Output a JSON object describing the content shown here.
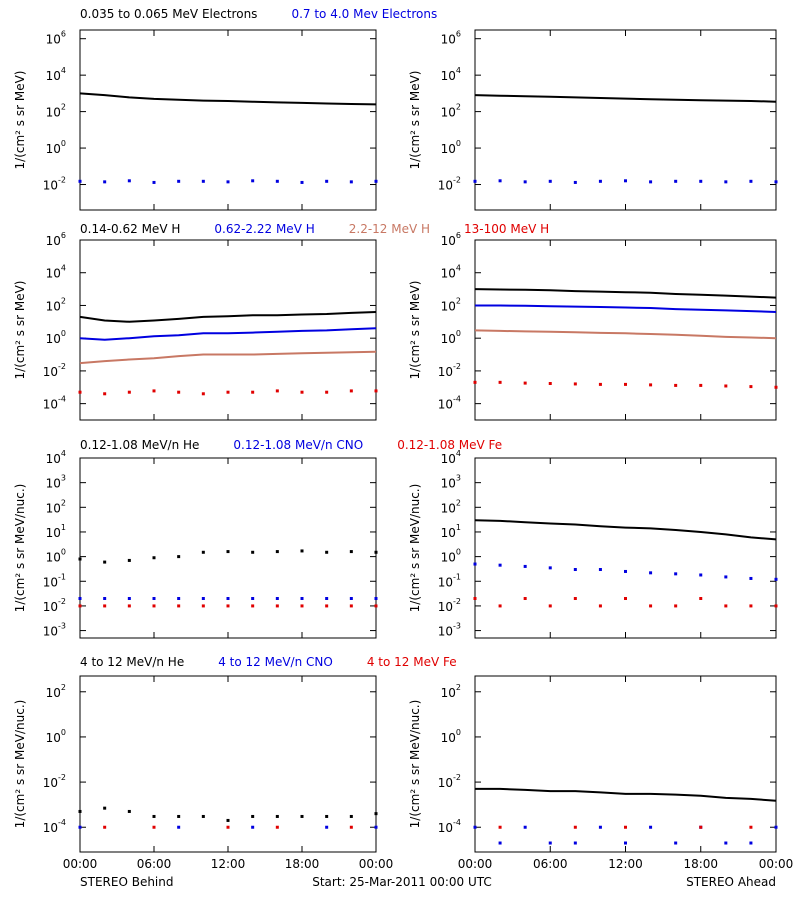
{
  "chart_data": [
    {
      "type": "line",
      "ylabel": "1/(cm² s sr MeV)",
      "ylim": [
        0.0004,
        3000000
      ],
      "log_y": true,
      "yticks": [
        {
          "value": 0.01,
          "label": "10",
          "sup": "-2"
        },
        {
          "value": 1,
          "label": "10",
          "sup": "0"
        },
        {
          "value": 100,
          "label": "10",
          "sup": "2"
        },
        {
          "value": 10000,
          "label": "10",
          "sup": "4"
        },
        {
          "value": 1000000,
          "label": "10",
          "sup": "6"
        }
      ],
      "xlim": [
        0,
        24
      ],
      "xticks": [
        0,
        6,
        12,
        18,
        24
      ],
      "x": [
        0,
        2,
        4,
        6,
        8,
        10,
        12,
        14,
        16,
        18,
        20,
        22,
        24
      ],
      "series": [
        {
          "name": "0.035 to 0.065 MeV Electrons",
          "color": "#000000",
          "style": "line",
          "values": [
            1000,
            800,
            600,
            500,
            450,
            400,
            380,
            350,
            320,
            300,
            280,
            260,
            250
          ]
        },
        {
          "name": "0.7 to 4.0 Mev Electrons",
          "color": "#0000e0",
          "style": "dots",
          "values": [
            0.015,
            0.014,
            0.016,
            0.013,
            0.015,
            0.015,
            0.014,
            0.016,
            0.015,
            0.013,
            0.015,
            0.014,
            0.015
          ]
        }
      ]
    },
    {
      "type": "line",
      "ylabel": "1/(cm² s sr MeV)",
      "ylim": [
        0.0004,
        3000000
      ],
      "log_y": true,
      "yticks": [
        {
          "value": 0.01,
          "label": "10",
          "sup": "-2"
        },
        {
          "value": 1,
          "label": "10",
          "sup": "0"
        },
        {
          "value": 100,
          "label": "10",
          "sup": "2"
        },
        {
          "value": 10000,
          "label": "10",
          "sup": "4"
        },
        {
          "value": 1000000,
          "label": "10",
          "sup": "6"
        }
      ],
      "xlim": [
        0,
        24
      ],
      "xticks": [
        0,
        6,
        12,
        18,
        24
      ],
      "x": [
        0,
        2,
        4,
        6,
        8,
        10,
        12,
        14,
        16,
        18,
        20,
        22,
        24
      ],
      "series": [
        {
          "color": "#000000",
          "style": "line",
          "values": [
            800,
            750,
            700,
            650,
            600,
            560,
            520,
            480,
            450,
            420,
            400,
            380,
            350
          ]
        },
        {
          "color": "#0000e0",
          "style": "dots",
          "values": [
            0.015,
            0.016,
            0.014,
            0.015,
            0.013,
            0.015,
            0.016,
            0.014,
            0.015,
            0.015,
            0.014,
            0.015,
            0.014
          ]
        }
      ]
    },
    {
      "type": "line",
      "ylabel": "1/(cm² s sr MeV)",
      "ylim": [
        1e-05,
        1000000
      ],
      "log_y": true,
      "yticks": [
        {
          "value": 0.0001,
          "label": "10",
          "sup": "-4"
        },
        {
          "value": 0.01,
          "label": "10",
          "sup": "-2"
        },
        {
          "value": 1,
          "label": "10",
          "sup": "0"
        },
        {
          "value": 100,
          "label": "10",
          "sup": "2"
        },
        {
          "value": 10000,
          "label": "10",
          "sup": "4"
        },
        {
          "value": 1000000,
          "label": "10",
          "sup": "6"
        }
      ],
      "xlim": [
        0,
        24
      ],
      "xticks": [
        0,
        6,
        12,
        18,
        24
      ],
      "x": [
        0,
        2,
        4,
        6,
        8,
        10,
        12,
        14,
        16,
        18,
        20,
        22,
        24
      ],
      "series": [
        {
          "name": "0.14-0.62 MeV H",
          "color": "#000000",
          "style": "line",
          "values": [
            20,
            12,
            10,
            12,
            15,
            20,
            22,
            25,
            25,
            28,
            30,
            35,
            40
          ]
        },
        {
          "name": "0.62-2.22 MeV H",
          "color": "#0000e0",
          "style": "line",
          "values": [
            1,
            0.8,
            1,
            1.3,
            1.5,
            2,
            2,
            2.2,
            2.5,
            2.8,
            3,
            3.5,
            4
          ]
        },
        {
          "name": "2.2-12 MeV H",
          "color": "#c87864",
          "style": "line",
          "values": [
            0.03,
            0.04,
            0.05,
            0.06,
            0.08,
            0.1,
            0.1,
            0.1,
            0.11,
            0.12,
            0.13,
            0.14,
            0.15
          ]
        },
        {
          "name": "13-100 MeV H",
          "color": "#e00000",
          "style": "dots",
          "values": [
            0.0005,
            0.0004,
            0.0005,
            0.0006,
            0.0005,
            0.0004,
            0.0005,
            0.0005,
            0.0006,
            0.0005,
            0.0005,
            0.0006,
            0.0006
          ]
        }
      ]
    },
    {
      "type": "line",
      "ylabel": "1/(cm² s sr MeV)",
      "ylim": [
        1e-05,
        1000000
      ],
      "log_y": true,
      "yticks": [
        {
          "value": 0.0001,
          "label": "10",
          "sup": "-4"
        },
        {
          "value": 0.01,
          "label": "10",
          "sup": "-2"
        },
        {
          "value": 1,
          "label": "10",
          "sup": "0"
        },
        {
          "value": 100,
          "label": "10",
          "sup": "2"
        },
        {
          "value": 10000,
          "label": "10",
          "sup": "4"
        },
        {
          "value": 1000000,
          "label": "10",
          "sup": "6"
        }
      ],
      "xlim": [
        0,
        24
      ],
      "xticks": [
        0,
        6,
        12,
        18,
        24
      ],
      "x": [
        0,
        2,
        4,
        6,
        8,
        10,
        12,
        14,
        16,
        18,
        20,
        22,
        24
      ],
      "series": [
        {
          "color": "#000000",
          "style": "line",
          "values": [
            1000,
            950,
            900,
            850,
            750,
            700,
            650,
            600,
            500,
            450,
            400,
            350,
            300
          ]
        },
        {
          "color": "#0000e0",
          "style": "line",
          "values": [
            100,
            100,
            95,
            90,
            85,
            80,
            75,
            70,
            60,
            55,
            50,
            45,
            40
          ]
        },
        {
          "color": "#c87864",
          "style": "line",
          "values": [
            3,
            2.8,
            2.6,
            2.5,
            2.3,
            2.1,
            2,
            1.8,
            1.6,
            1.4,
            1.2,
            1.1,
            1
          ]
        },
        {
          "color": "#e00000",
          "style": "dots",
          "values": [
            0.002,
            0.002,
            0.0018,
            0.0017,
            0.0016,
            0.0015,
            0.0015,
            0.0014,
            0.0013,
            0.0013,
            0.0012,
            0.0011,
            0.001
          ]
        }
      ]
    },
    {
      "type": "line",
      "ylabel": "1/(cm² s sr MeV/nuc.)",
      "ylim": [
        0.0005,
        10000
      ],
      "log_y": true,
      "yticks": [
        {
          "value": 0.001,
          "label": "10",
          "sup": "-3"
        },
        {
          "value": 0.01,
          "label": "10",
          "sup": "-2"
        },
        {
          "value": 0.1,
          "label": "10",
          "sup": "-1"
        },
        {
          "value": 1,
          "label": "10",
          "sup": "0"
        },
        {
          "value": 10,
          "label": "10",
          "sup": "1"
        },
        {
          "value": 100,
          "label": "10",
          "sup": "2"
        },
        {
          "value": 1000,
          "label": "10",
          "sup": "3"
        },
        {
          "value": 10000,
          "label": "10",
          "sup": "4"
        }
      ],
      "xlim": [
        0,
        24
      ],
      "xticks": [
        0,
        6,
        12,
        18,
        24
      ],
      "x": [
        0,
        2,
        4,
        6,
        8,
        10,
        12,
        14,
        16,
        18,
        20,
        22,
        24
      ],
      "series": [
        {
          "name": "0.12-1.08 MeV/n He",
          "color": "#000000",
          "style": "dots",
          "values": [
            0.8,
            0.6,
            0.7,
            0.9,
            1,
            1.5,
            1.6,
            1.5,
            1.6,
            1.7,
            1.5,
            1.6,
            1.5
          ]
        },
        {
          "name": "0.12-1.08 MeV/n CNO",
          "color": "#0000e0",
          "style": "dots",
          "values": [
            0.02,
            0.02,
            0.02,
            0.02,
            0.02,
            0.02,
            0.02,
            0.02,
            0.02,
            0.02,
            0.02,
            0.02,
            0.02
          ]
        },
        {
          "name": "0.12-1.08 MeV Fe",
          "color": "#e00000",
          "style": "dots",
          "values": [
            0.01,
            0.01,
            0.01,
            0.01,
            0.01,
            0.01,
            0.01,
            0.01,
            0.01,
            0.01,
            0.01,
            0.01,
            0.01
          ]
        }
      ]
    },
    {
      "type": "line",
      "ylabel": "1/(cm² s sr MeV/nuc.)",
      "ylim": [
        0.0005,
        10000
      ],
      "log_y": true,
      "yticks": [
        {
          "value": 0.001,
          "label": "10",
          "sup": "-3"
        },
        {
          "value": 0.01,
          "label": "10",
          "sup": "-2"
        },
        {
          "value": 0.1,
          "label": "10",
          "sup": "-1"
        },
        {
          "value": 1,
          "label": "10",
          "sup": "0"
        },
        {
          "value": 10,
          "label": "10",
          "sup": "1"
        },
        {
          "value": 100,
          "label": "10",
          "sup": "2"
        },
        {
          "value": 1000,
          "label": "10",
          "sup": "3"
        },
        {
          "value": 10000,
          "label": "10",
          "sup": "4"
        }
      ],
      "xlim": [
        0,
        24
      ],
      "xticks": [
        0,
        6,
        12,
        18,
        24
      ],
      "x": [
        0,
        2,
        4,
        6,
        8,
        10,
        12,
        14,
        16,
        18,
        20,
        22,
        24
      ],
      "series": [
        {
          "color": "#000000",
          "style": "line",
          "values": [
            30,
            28,
            25,
            22,
            20,
            17,
            15,
            14,
            12,
            10,
            8,
            6,
            5
          ]
        },
        {
          "color": "#0000e0",
          "style": "dots",
          "values": [
            0.5,
            0.45,
            0.4,
            0.35,
            0.3,
            0.3,
            0.25,
            0.22,
            0.2,
            0.18,
            0.15,
            0.13,
            0.12
          ]
        },
        {
          "color": "#e00000",
          "style": "dots",
          "values": [
            0.02,
            0.01,
            0.02,
            0.01,
            0.02,
            0.01,
            0.02,
            0.01,
            0.01,
            0.02,
            0.01,
            0.01,
            0.01
          ]
        }
      ]
    },
    {
      "type": "line",
      "ylabel": "1/(cm² s sr MeV/nuc.)",
      "ylim": [
        8e-06,
        500
      ],
      "log_y": true,
      "yticks": [
        {
          "value": 0.0001,
          "label": "10",
          "sup": "-4"
        },
        {
          "value": 0.01,
          "label": "10",
          "sup": "-2"
        },
        {
          "value": 1,
          "label": "10",
          "sup": "0"
        },
        {
          "value": 100,
          "label": "10",
          "sup": "2"
        }
      ],
      "xlim": [
        0,
        24
      ],
      "xticks": [
        {
          "value": 0,
          "label": "00:00"
        },
        {
          "value": 6,
          "label": "06:00"
        },
        {
          "value": 12,
          "label": "12:00"
        },
        {
          "value": 18,
          "label": "18:00"
        },
        {
          "value": 24,
          "label": "00:00"
        }
      ],
      "x": [
        0,
        2,
        4,
        6,
        8,
        10,
        12,
        14,
        16,
        18,
        20,
        22,
        24
      ],
      "series": [
        {
          "name": "4 to 12 MeV/n He",
          "color": "#000000",
          "style": "dots",
          "values": [
            0.0005,
            0.0007,
            0.0005,
            0.0003,
            0.0003,
            0.0003,
            0.0002,
            0.0003,
            0.0003,
            0.0003,
            0.0003,
            0.0003,
            0.0004
          ]
        },
        {
          "name": "4 to 12 MeV/n CNO",
          "color": "#0000e0",
          "style": "dots",
          "values": [
            0.0001,
            null,
            null,
            null,
            0.0001,
            null,
            null,
            0.0001,
            null,
            null,
            0.0001,
            null,
            0.0001
          ]
        },
        {
          "name": "4 to 12 MeV Fe",
          "color": "#e00000",
          "style": "dots",
          "values": [
            null,
            0.0001,
            null,
            0.0001,
            null,
            null,
            0.0001,
            null,
            0.0001,
            null,
            null,
            0.0001,
            null
          ]
        }
      ]
    },
    {
      "type": "line",
      "ylabel": "1/(cm² s sr MeV/nuc.)",
      "ylim": [
        8e-06,
        500
      ],
      "log_y": true,
      "yticks": [
        {
          "value": 0.0001,
          "label": "10",
          "sup": "-4"
        },
        {
          "value": 0.01,
          "label": "10",
          "sup": "-2"
        },
        {
          "value": 1,
          "label": "10",
          "sup": "0"
        },
        {
          "value": 100,
          "label": "10",
          "sup": "2"
        }
      ],
      "xlim": [
        0,
        24
      ],
      "xticks": [
        {
          "value": 0,
          "label": "00:00"
        },
        {
          "value": 6,
          "label": "06:00"
        },
        {
          "value": 12,
          "label": "12:00"
        },
        {
          "value": 18,
          "label": "18:00"
        },
        {
          "value": 24,
          "label": "00:00"
        }
      ],
      "x": [
        0,
        2,
        4,
        6,
        8,
        10,
        12,
        14,
        16,
        18,
        20,
        22,
        24
      ],
      "series": [
        {
          "color": "#000000",
          "style": "line",
          "values": [
            0.005,
            0.005,
            0.0045,
            0.004,
            0.004,
            0.0035,
            0.003,
            0.003,
            0.0028,
            0.0025,
            0.002,
            0.0018,
            0.0015
          ]
        },
        {
          "color": "#0000e0",
          "style": "dots",
          "values": [
            0.0001,
            2e-05,
            0.0001,
            2e-05,
            2e-05,
            0.0001,
            2e-05,
            0.0001,
            2e-05,
            0.0001,
            2e-05,
            2e-05,
            0.0001
          ]
        },
        {
          "color": "#e00000",
          "style": "dots",
          "values": [
            null,
            0.0001,
            null,
            null,
            0.0001,
            null,
            0.0001,
            null,
            null,
            0.0001,
            null,
            0.0001,
            null
          ]
        }
      ]
    }
  ],
  "footer": {
    "left": "STEREO Behind",
    "center": "Start: 25-Mar-2011 00:00 UTC",
    "right": "STEREO Ahead"
  }
}
